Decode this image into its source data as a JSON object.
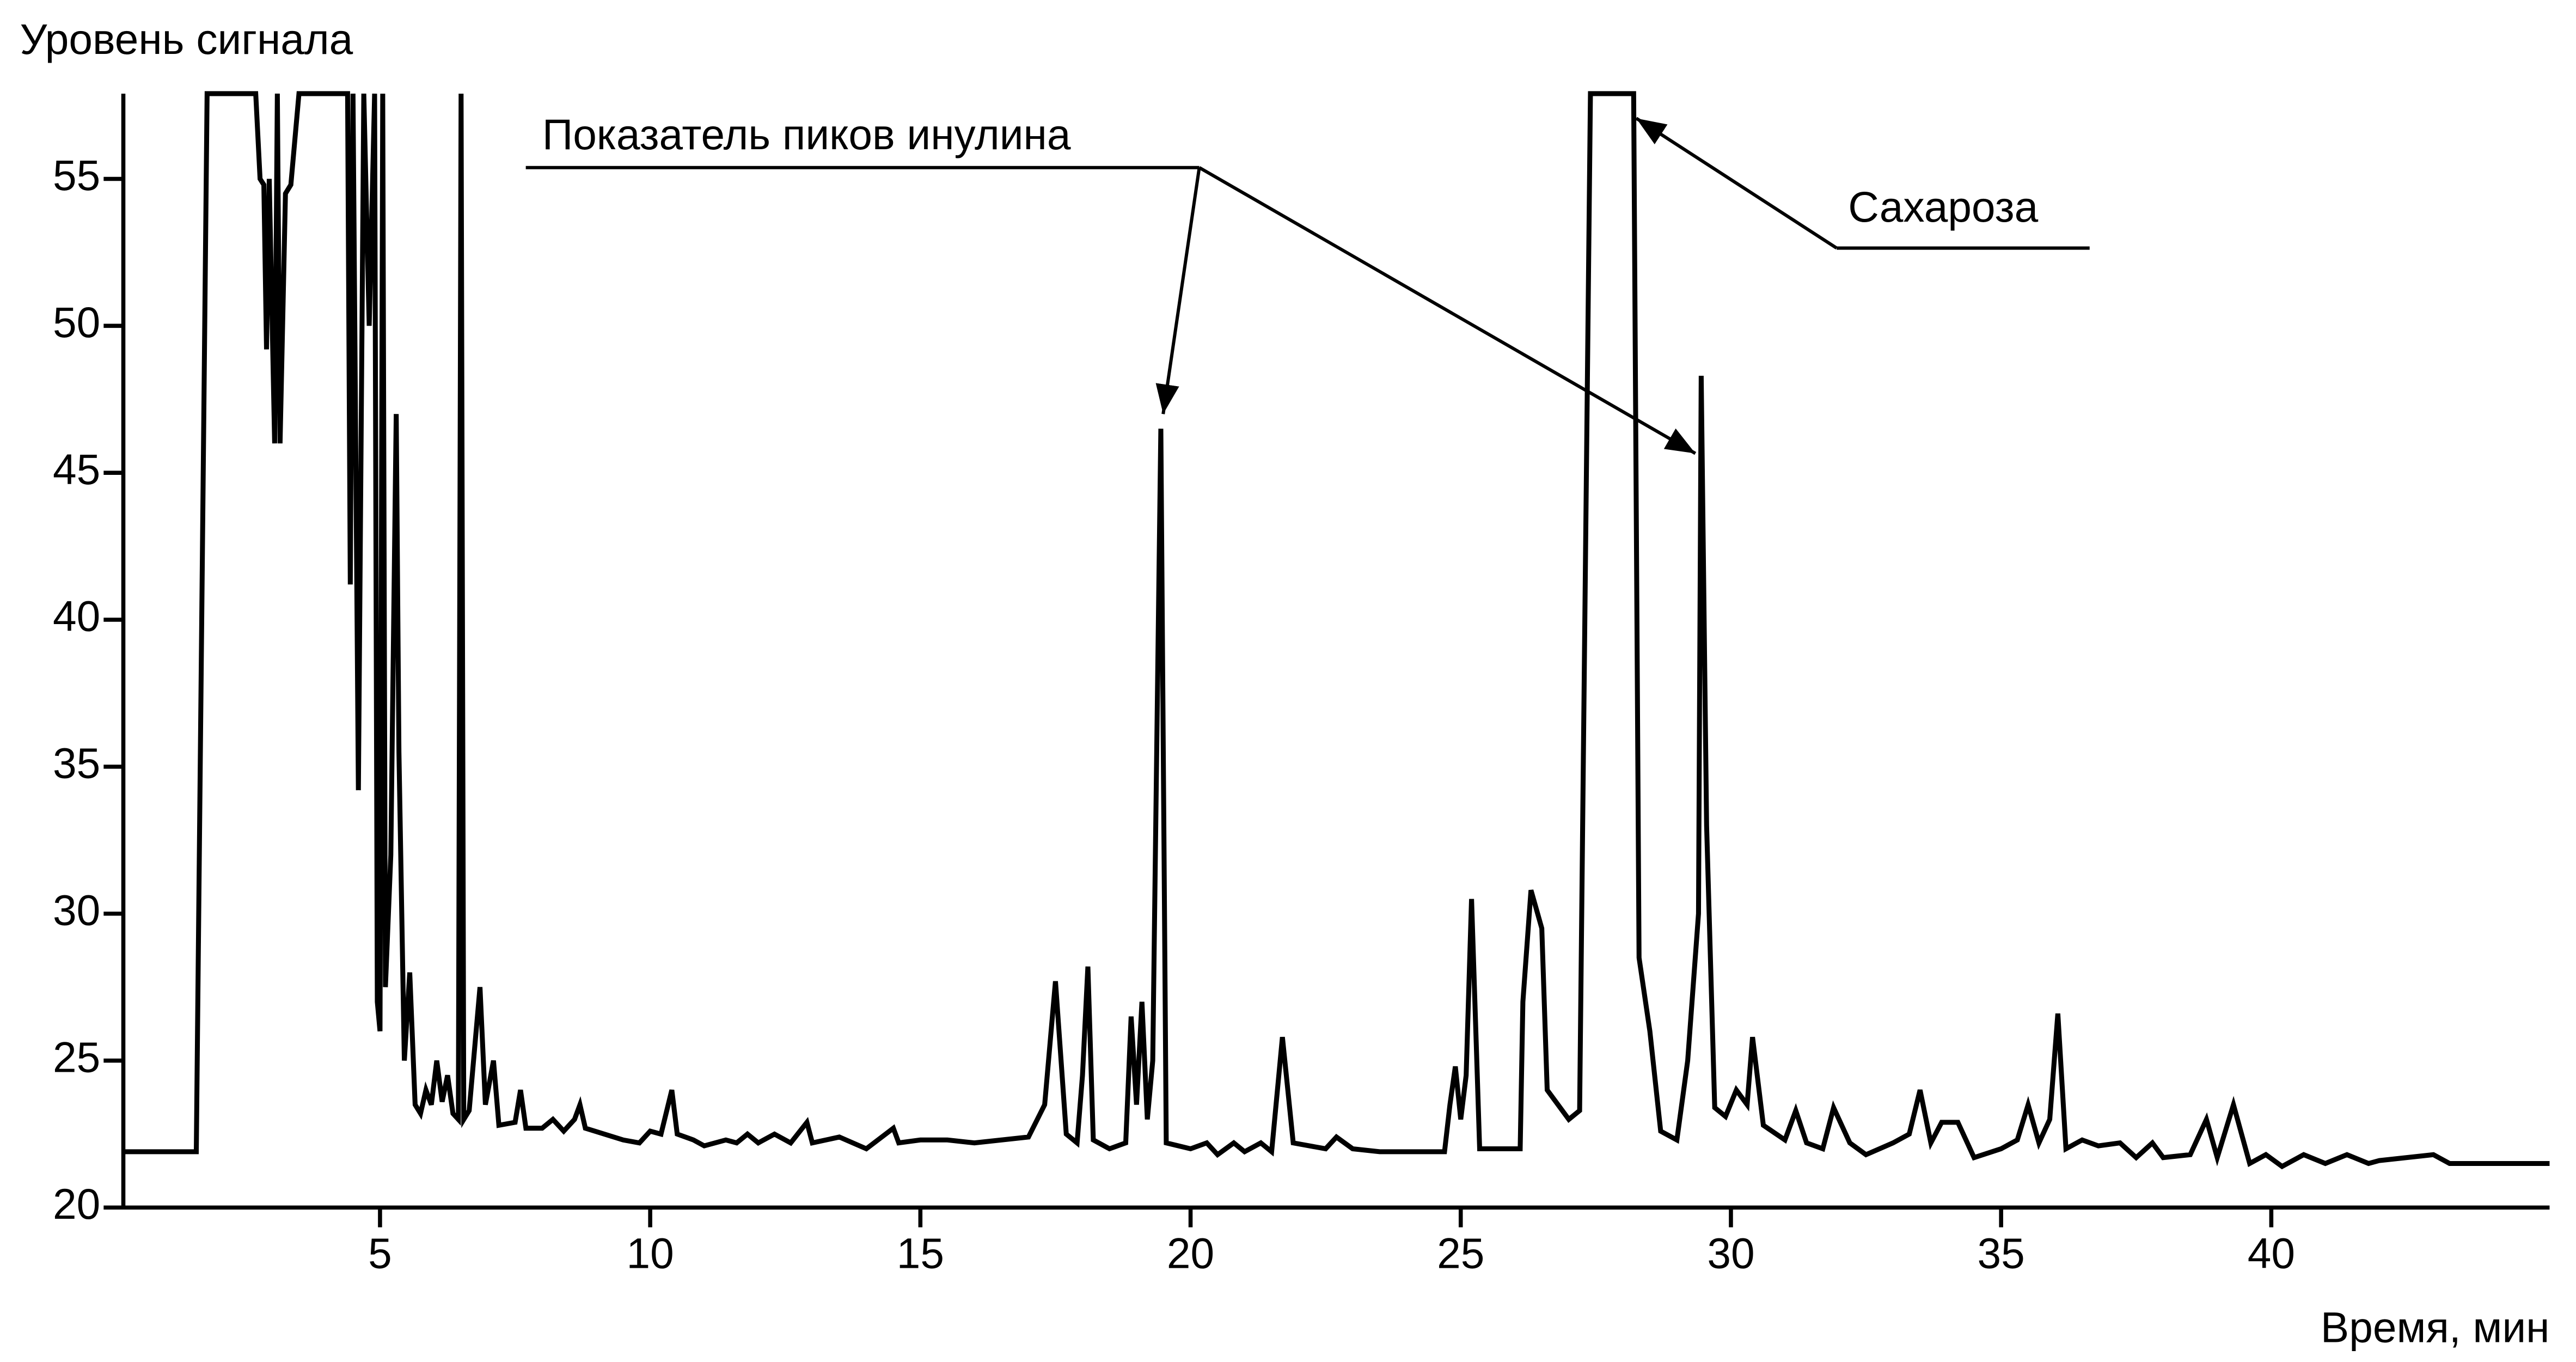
{
  "chart_data": {
    "type": "line",
    "y_label": "Уровень сигнала",
    "x_label": "Время, мин",
    "xlim": [
      0.25,
      45.15
    ],
    "ylim": [
      20,
      57.9
    ],
    "xticks": [
      5,
      10,
      15,
      20,
      25,
      30,
      35,
      40
    ],
    "yticks": [
      20,
      25,
      30,
      35,
      40,
      45,
      50,
      55
    ],
    "color": "#000000",
    "annotations": [
      "Показатель пиков инулина",
      "Сахароза"
    ],
    "x": [
      0.25,
      1.6,
      1.8,
      2.7,
      2.78,
      2.85,
      2.9,
      2.95,
      3.05,
      3.1,
      3.15,
      3.25,
      3.35,
      3.5,
      4.4,
      4.45,
      4.5,
      4.6,
      4.7,
      4.8,
      4.9,
      4.95,
      5.0,
      5.05,
      5.1,
      5.2,
      5.3,
      5.35,
      5.45,
      5.55,
      5.65,
      5.75,
      5.85,
      5.95,
      6.05,
      6.15,
      6.25,
      6.35,
      6.45,
      6.5,
      6.55,
      6.65,
      6.85,
      6.95,
      7.1,
      7.2,
      7.5,
      7.6,
      7.7,
      8.0,
      8.2,
      8.4,
      8.6,
      8.7,
      8.8,
      9.5,
      9.8,
      10.0,
      10.2,
      10.4,
      10.5,
      10.8,
      11.0,
      11.4,
      11.6,
      11.8,
      12.0,
      12.3,
      12.6,
      12.9,
      13.0,
      13.5,
      14.0,
      14.5,
      14.6,
      15.0,
      15.5,
      16.0,
      17.0,
      17.3,
      17.5,
      17.7,
      17.9,
      18.0,
      18.1,
      18.2,
      18.5,
      18.8,
      18.9,
      19.0,
      19.1,
      19.2,
      19.3,
      19.45,
      19.55,
      20.0,
      20.3,
      20.5,
      20.8,
      21.0,
      21.3,
      21.5,
      21.7,
      21.9,
      22.5,
      22.7,
      23.0,
      23.5,
      24.7,
      24.8,
      24.9,
      25.0,
      25.1,
      25.2,
      25.35,
      26.1,
      26.15,
      26.3,
      26.5,
      26.6,
      27.0,
      27.2,
      27.4,
      28.2,
      28.3,
      28.5,
      28.7,
      29.0,
      29.2,
      29.4,
      29.45,
      29.55,
      29.7,
      29.9,
      30.1,
      30.3,
      30.4,
      30.6,
      31.0,
      31.2,
      31.4,
      31.7,
      31.9,
      32.2,
      32.5,
      33.0,
      33.3,
      33.5,
      33.7,
      33.9,
      34.2,
      34.5,
      35.0,
      35.3,
      35.5,
      35.7,
      35.9,
      36.05,
      36.2,
      36.5,
      36.8,
      37.2,
      37.5,
      37.8,
      38.0,
      38.5,
      38.8,
      39.0,
      39.3,
      39.6,
      39.9,
      40.2,
      40.6,
      41.0,
      41.4,
      41.8,
      42.0,
      43.0,
      43.3,
      45.15
    ],
    "values": [
      21.9,
      21.9,
      57.9,
      57.9,
      55,
      54.8,
      49.2,
      55,
      46,
      57.9,
      46,
      54.5,
      54.8,
      57.9,
      57.9,
      41.2,
      57.9,
      34.2,
      57.9,
      50,
      57.9,
      27,
      26,
      57.9,
      27.5,
      32,
      47,
      35.5,
      25,
      28,
      23.5,
      23.2,
      24,
      23.5,
      25,
      23.6,
      24.5,
      23.2,
      23,
      57.9,
      23,
      23.3,
      27.5,
      23.5,
      25,
      22.8,
      22.9,
      24,
      22.7,
      22.7,
      23,
      22.6,
      23,
      23.5,
      22.7,
      22.3,
      22.2,
      22.6,
      22.5,
      24,
      22.5,
      22.3,
      22.1,
      22.3,
      22.2,
      22.5,
      22.2,
      22.5,
      22.2,
      22.9,
      22.2,
      22.4,
      22,
      22.7,
      22.2,
      22.3,
      22.3,
      22.2,
      22.4,
      23.5,
      27.7,
      22.5,
      22.2,
      24.5,
      28.2,
      22.3,
      22,
      22.2,
      26.5,
      23.5,
      27,
      23,
      25,
      46.5,
      22.2,
      22,
      22.2,
      21.8,
      22.2,
      21.9,
      22.2,
      21.9,
      25.8,
      22.2,
      22,
      22.4,
      22,
      21.9,
      21.9,
      23.5,
      24.8,
      23,
      24.5,
      30.5,
      22,
      22,
      27,
      30.8,
      29.5,
      24,
      23,
      23.3,
      57.9,
      57.9,
      28.5,
      26,
      22.6,
      22.3,
      25,
      30,
      48.3,
      33,
      23.4,
      23.1,
      24,
      23.5,
      25.8,
      22.8,
      22.3,
      23.3,
      22.2,
      22,
      23.4,
      22.2,
      21.8,
      22.2,
      22.5,
      24,
      22.2,
      22.9,
      22.9,
      21.7,
      22,
      22.3,
      23.5,
      22.2,
      23,
      26.6,
      22,
      22.3,
      22.1,
      22.2,
      21.7,
      22.2,
      21.7,
      21.8,
      23,
      21.7,
      23.5,
      21.5,
      21.8,
      21.4,
      21.8,
      21.5,
      21.8,
      21.5,
      21.6,
      21.8,
      21.5,
      21.5
    ]
  }
}
